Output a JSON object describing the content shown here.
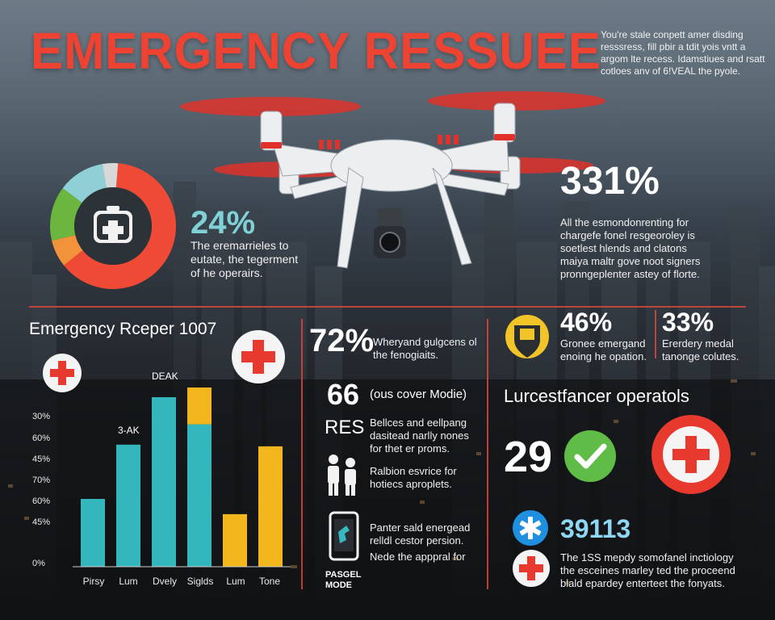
{
  "header": {
    "title": "EMERGENCY RESSUEE",
    "intro": "You're stale conpett amer disding resssress, fill pbir a tdit yois vntt a argom lte recess. Idamstiues and rsatt cotloes anv of 6!VEAL the pyole."
  },
  "donut": {
    "value": "24%",
    "text": "The eremarrieles to eutate, the tegerment of he operairs.",
    "segments": [
      {
        "color": "#ef4a36",
        "fraction": 0.63
      },
      {
        "color": "#f2923a",
        "fraction": 0.07
      },
      {
        "color": "#6bb63e",
        "fraction": 0.14
      },
      {
        "color": "#8fd0d6",
        "fraction": 0.12
      },
      {
        "color": "#d8d8d8",
        "fraction": 0.04
      }
    ]
  },
  "right_top": {
    "value": "331%",
    "text": "All the esmondonrenting for chargefe fonel resgeoroley is soetlest hlends and clatons maiya maltr gove noot signers pronngeplenter astey of florte."
  },
  "left_panel": {
    "title": "Emergency Rceper 1007",
    "label_peak": "DEAK",
    "label_3ak": "3-AK",
    "y_labels": [
      "30%",
      "60%",
      "45%",
      "70%",
      "60%",
      "45%",
      "0%"
    ]
  },
  "chart_data": {
    "type": "bar",
    "categories": [
      "Pirsy",
      "Lum",
      "Dvely",
      "Siglds",
      "Lum",
      "Tone"
    ],
    "series": [
      {
        "values": [
          40,
          72,
          100,
          84,
          0,
          0
        ],
        "color": "#34b7bc"
      },
      {
        "values": [
          0,
          0,
          0,
          22,
          31,
          71
        ],
        "color": "#f3b71d"
      }
    ],
    "ylim": [
      0,
      100
    ]
  },
  "middle_panel": {
    "stat1_value": "72%",
    "stat1_text": "Wheryand gulgcens ol the fenogiaits.",
    "stat2_value": "66",
    "stat2_label": "(ous cover Modie)",
    "res_label": "RES",
    "res_text": "Bellces and eellpang dasitead narlly nones for thet er proms.",
    "people_text": "Ralbion esvrice for hotiecs aproplets.",
    "phone_text": "Panter sald energead relldl cestor persion.",
    "phone_text2": "Nede the apppral for",
    "mode_label": "PASGEL MODE"
  },
  "right_panel": {
    "stat1_value": "46%",
    "stat1_text": "Gronee emergand enoing he opation.",
    "stat2_value": "33%",
    "stat2_text": "Ererdery medal tanonge colutes.",
    "heading": "Lurcestfancer operatols",
    "count_value": "29",
    "number_value": "39113",
    "bottom_text": "The 1SS mepdy somofanel inctiology the esceines marley ted the proceend blald epardey enterteet the fonyats."
  },
  "colors": {
    "accent_red": "#ee4233",
    "teal": "#34b7bc",
    "amber": "#f3b71d",
    "green": "#5fbc46",
    "blue": "#1f8fe0"
  }
}
